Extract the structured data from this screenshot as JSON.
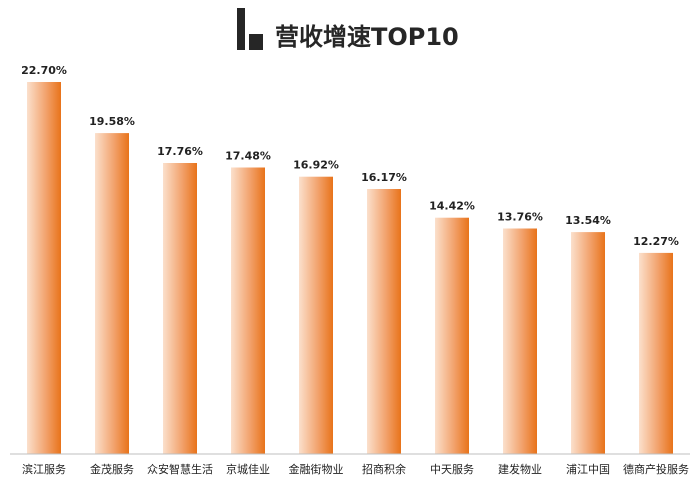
{
  "header": {
    "title": "营收增速TOP10",
    "icon": "bar-chart-logo-icon"
  },
  "colors": {
    "bar_top": "#E8731A",
    "bar_mid": "#F2A36E",
    "bar_light": "#FBE0CC",
    "axis": "#BFBFBF",
    "icon": "#262626"
  },
  "chart_data": {
    "type": "bar",
    "title": "营收增速TOP10",
    "xlabel": "",
    "ylabel": "",
    "unit": "%",
    "ylim": [
      0,
      24
    ],
    "grid": false,
    "legend": "none",
    "categories": [
      "滨江服务",
      "金茂服务",
      "众安智慧生活",
      "京城佳业",
      "金融街物业",
      "招商积余",
      "中天服务",
      "建发物业",
      "浦江中国",
      "德商产投服务"
    ],
    "values": [
      22.7,
      19.58,
      17.76,
      17.48,
      16.92,
      16.17,
      14.42,
      13.76,
      13.54,
      12.27
    ],
    "data_labels": [
      "22.70%",
      "19.58%",
      "17.76%",
      "17.48%",
      "16.92%",
      "16.17%",
      "14.42%",
      "13.76%",
      "13.54%",
      "12.27%"
    ]
  }
}
